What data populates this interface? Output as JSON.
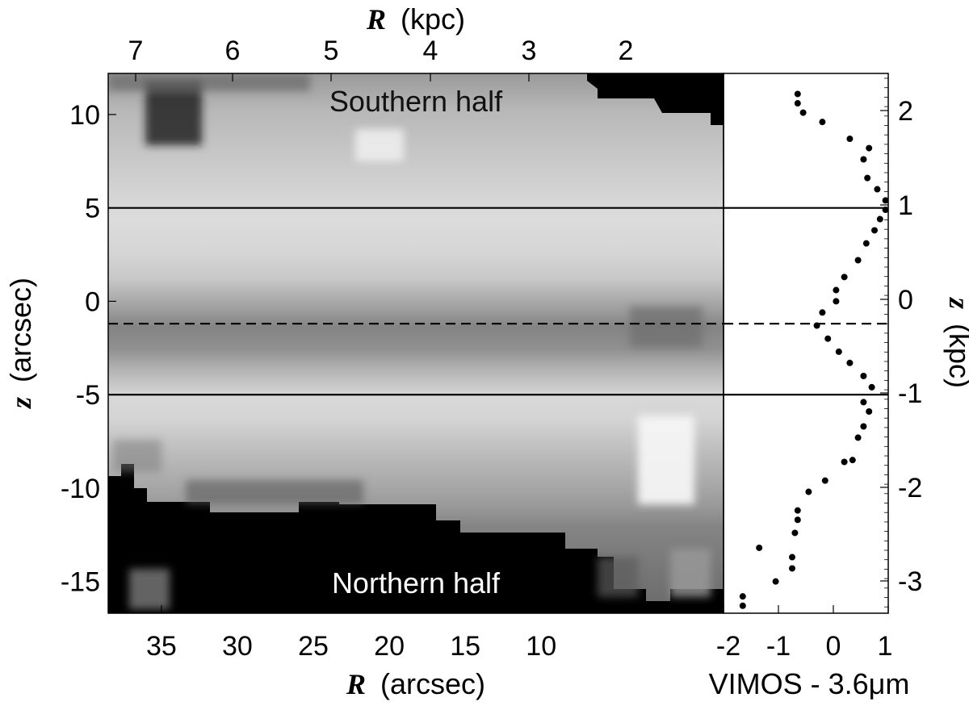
{
  "chart_data": {
    "type": "heatmap",
    "image_panel": {
      "x_axis_bottom": {
        "label_symbol": "R",
        "label_unit": "(arcsec)",
        "range": [
          38.5,
          -2
        ],
        "ticks": [
          35,
          30,
          25,
          20,
          15,
          10
        ]
      },
      "x_axis_top": {
        "label_symbol": "R",
        "label_unit": "(kpc)",
        "ticks": [
          7,
          6,
          5,
          4,
          3,
          2
        ]
      },
      "y_axis_left": {
        "label_symbol": "z",
        "label_unit": "(arcsec)",
        "range": [
          -16.7,
          12.2
        ],
        "ticks": [
          10,
          5,
          0,
          -5,
          -10,
          -15
        ]
      },
      "annotations": [
        "Southern half",
        "Northern half"
      ],
      "horizontal_lines": [
        {
          "z": 5,
          "style": "solid"
        },
        {
          "z": -1.2,
          "style": "dashed"
        },
        {
          "z": -5,
          "style": "solid"
        }
      ],
      "colormap": "grayscale"
    },
    "profile_panel": {
      "type": "scatter",
      "x_axis": {
        "label": "VIMOS - 3.6",
        "label_unit": "μm",
        "range": [
          -2,
          1
        ],
        "ticks": [
          -2,
          -1,
          0,
          1
        ]
      },
      "y_axis_right": {
        "label_symbol": "z",
        "label_unit": "(kpc)",
        "ticks": [
          2,
          1,
          0,
          -1,
          -2,
          -3
        ]
      },
      "points": [
        {
          "x": -0.65,
          "z": 11.1
        },
        {
          "x": -0.65,
          "z": 10.6
        },
        {
          "x": -0.55,
          "z": 10.1
        },
        {
          "x": -0.2,
          "z": 9.6
        },
        {
          "x": 0.3,
          "z": 8.7
        },
        {
          "x": 0.65,
          "z": 8.2
        },
        {
          "x": 0.55,
          "z": 7.6
        },
        {
          "x": 0.62,
          "z": 6.6
        },
        {
          "x": 0.8,
          "z": 6.0
        },
        {
          "x": 0.95,
          "z": 5.4
        },
        {
          "x": 0.95,
          "z": 4.9
        },
        {
          "x": 0.85,
          "z": 4.4
        },
        {
          "x": 0.75,
          "z": 3.8
        },
        {
          "x": 0.6,
          "z": 3.1
        },
        {
          "x": 0.45,
          "z": 2.2
        },
        {
          "x": 0.2,
          "z": 1.3
        },
        {
          "x": 0.05,
          "z": 0.6
        },
        {
          "x": 0.05,
          "z": 0.0
        },
        {
          "x": -0.2,
          "z": -0.6
        },
        {
          "x": -0.3,
          "z": -1.3
        },
        {
          "x": -0.1,
          "z": -2.0
        },
        {
          "x": 0.1,
          "z": -2.7
        },
        {
          "x": 0.3,
          "z": -3.3
        },
        {
          "x": 0.55,
          "z": -4.0
        },
        {
          "x": 0.7,
          "z": -4.6
        },
        {
          "x": 0.55,
          "z": -5.4
        },
        {
          "x": 0.65,
          "z": -5.9
        },
        {
          "x": 0.55,
          "z": -6.7
        },
        {
          "x": 0.45,
          "z": -7.3
        },
        {
          "x": 0.35,
          "z": -8.5
        },
        {
          "x": 0.2,
          "z": -8.6
        },
        {
          "x": -0.15,
          "z": -9.6
        },
        {
          "x": -0.45,
          "z": -10.2
        },
        {
          "x": -0.65,
          "z": -11.2
        },
        {
          "x": -0.65,
          "z": -11.7
        },
        {
          "x": -0.7,
          "z": -12.4
        },
        {
          "x": -1.35,
          "z": -13.2
        },
        {
          "x": -0.75,
          "z": -13.7
        },
        {
          "x": -0.75,
          "z": -14.3
        },
        {
          "x": -1.05,
          "z": -15.0
        },
        {
          "x": -1.65,
          "z": -15.8
        },
        {
          "x": -1.65,
          "z": -16.3
        }
      ]
    }
  }
}
